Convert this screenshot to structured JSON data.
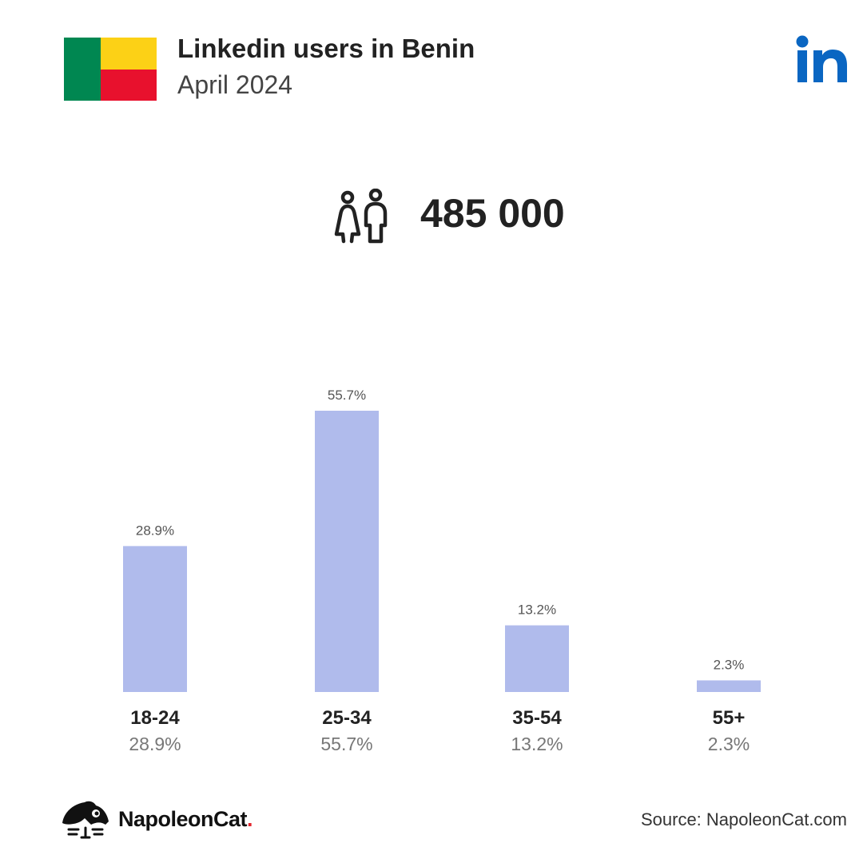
{
  "header": {
    "title": "Linkedin users in Benin",
    "subtitle": "April 2024",
    "flag_colors": {
      "green": "#008751",
      "yellow": "#fcd116",
      "red": "#e8112d"
    },
    "logo_icon": "linkedin-logo-icon",
    "logo_color": "#0a66c2"
  },
  "summary": {
    "icon": "users-icon",
    "total": "485 000"
  },
  "chart_data": {
    "type": "bar",
    "categories": [
      "18-24",
      "25-34",
      "35-54",
      "55+"
    ],
    "values": [
      28.9,
      55.7,
      13.2,
      2.3
    ],
    "value_labels": [
      "28.9%",
      "55.7%",
      "13.2%",
      "2.3%"
    ],
    "bar_color": "#b0bbec",
    "ylim": [
      0,
      55.7
    ],
    "grid": false,
    "legend": "none"
  },
  "footer": {
    "brand_name": "NapoleonCat",
    "brand_dot": ".",
    "brand_icon": "napoleoncat-logo-icon",
    "source": "Source: NapoleonCat.com"
  }
}
